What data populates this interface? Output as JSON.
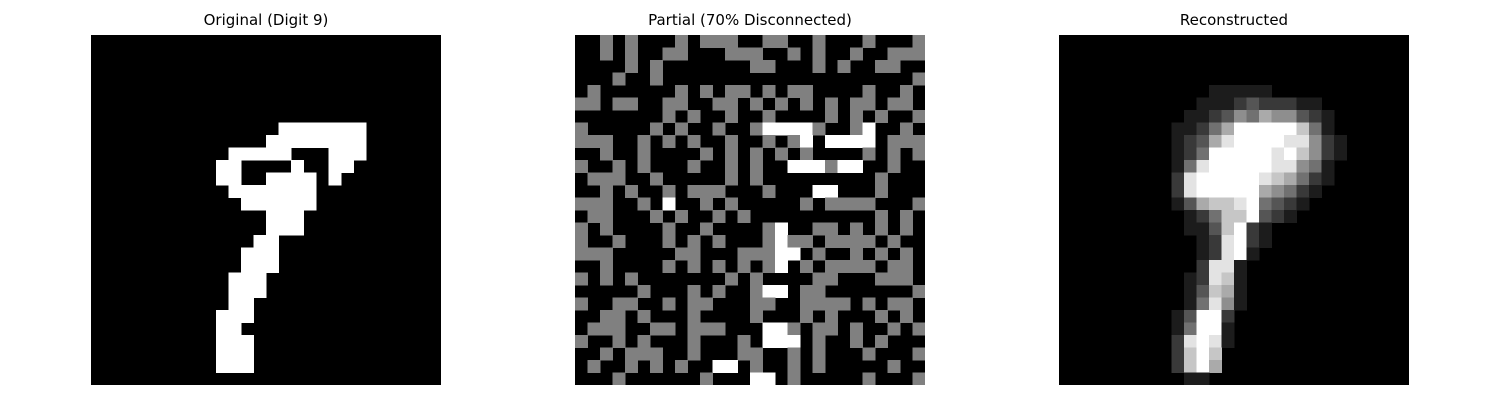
{
  "panels": [
    {
      "title": "Original (Digit 9)",
      "kind": "binary",
      "rows": [
        "............................",
        "............................",
        "............................",
        "............................",
        "............................",
        "............................",
        "............................",
        "...............#######......",
        "..............########......",
        "...........#####...###......",
        "..........##....#..##.......",
        "..........##..####.#........",
        "...........#######..........",
        "............######..........",
        "..............###...........",
        "..............###...........",
        ".............##.............",
        "............###.............",
        "............###.............",
        "...........###..............",
        "...........###..............",
        "...........##...............",
        "..........###...............",
        "..........##................",
        "..........###...............",
        "..........###...............",
        "..........###...............",
        "............................"
      ]
    },
    {
      "title": "Partial (70% Disconnected)",
      "kind": "masked",
      "rows": [
        "..+.+...+.+++..++..+...+...+",
        "..+.+..++...+++..+.+..+..+++",
        "....+.+.......++...+.+..++..",
        "...+..+....................+",
        ".+......+.+.++.+.++....+..+.",
        "++.++..++..++.+.+.+.+.++.++.",
        ".......+.+..+..+....+.+.+..+",
        "+.....+.+..+..+####+..+#..+.",
        "+++..+.+.+..+..+.+#.####.+++",
        "..+..+....+.+.+.+.+....+.+.+",
        "+..+.+...+..+.+..###+##..+..",
        ".+++..+.....+.+.........+...",
        "..+.+..+.+++...+...##...+...",
        "+++..+.#..+.+.....+.++++...+",
        ".++...+.+..+.+..........+.+.",
        "+.+....+..+....+#..++.+.+.+.",
        "+..+...+.+.+...+#++.++++.+..",
        "+++.....++...+++##.+..+.+.+.",
        "..+....+.+.+.+.+#.+.++++.++.",
        "+.+.+.......+.+....++...+++.",
        ".....+...+.+..+##.++.......+",
        "+..++..+.++...++..++++.+.++.",
        "..++.+...+....+...+.+...+.+.",
        ".+++..++.+++...##+.++.+..+.+",
        "+..+.+...+...+.###.+..+.+...",
        "..+.+++..+...++..+.+...+...+",
        ".+..+.+.+..##.+..+.+.....+..",
        "...+......+...##.+.....+...+"
      ]
    },
    {
      "title": "Reconstructed",
      "kind": "grayscale",
      "rows": [
        "0000000000000000000000000000",
        "0000000000000000000000000000",
        "0000000000000000000000000000",
        "0000000000000000000000000000",
        "0000000000001111100000000000",
        "0000000000011123222110000000",
        "0000000000112354655321000000",
        "0000000001124699999741000000",
        "0000000001236899998852100000",
        "0000000001249999989752100000",
        "0000000001489999988541000000",
        "0000000002899999876421000000",
        "0000000002899999654210000000",
        "0000000001367789432100000000",
        "0000000000124779321000000000",
        "0000000000113792100000000000",
        "0000000000012892100000000000",
        "0000000000012891000000000000",
        "0000000000028810000000000000",
        "0000000000128710000000000000",
        "0000000000137610000000000000",
        "0000000000148510000000000000",
        "0000000001399200000000000000",
        "0000000001499100000000000000",
        "0000000002898100000000000000",
        "0000000002797000000000000000",
        "0000000002796000000000000000",
        "0000000000110000000000000000"
      ]
    }
  ],
  "colors": {
    "background": "#000000",
    "on": "#ffffff",
    "unknown": "#808080"
  }
}
